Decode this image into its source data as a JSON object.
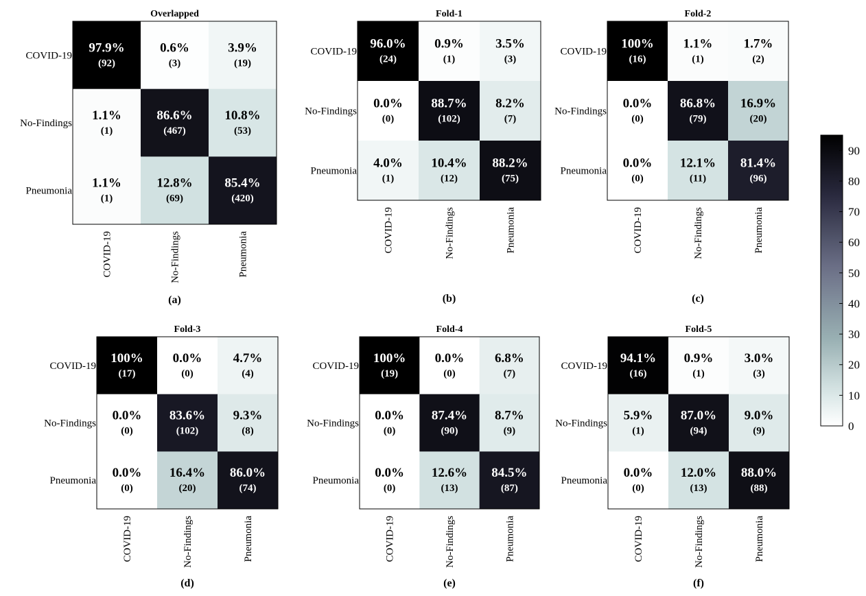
{
  "colorbar": {
    "ticks": [
      0,
      10,
      20,
      30,
      40,
      50,
      60,
      70,
      80,
      90
    ],
    "range": [
      0,
      95
    ],
    "colors": [
      "#ffffff",
      "#d4e3e3",
      "#9ab1b4",
      "#6b6f86",
      "#2a2a3f",
      "#000000"
    ]
  },
  "chart_data": [
    {
      "type": "heatmap",
      "panel": "(a)",
      "title": "Overlapped",
      "row_labels": [
        "COVID-19",
        "No-Findings",
        "Pneumonia"
      ],
      "col_labels": [
        "COVID-19",
        "No-Findings",
        "Pneumonia"
      ],
      "percent": [
        [
          "97.9%",
          "0.6%",
          "3.9%"
        ],
        [
          "1.1%",
          "86.6%",
          "10.8%"
        ],
        [
          "1.1%",
          "12.8%",
          "85.4%"
        ]
      ],
      "counts": [
        [
          "(92)",
          "(3)",
          "(19)"
        ],
        [
          "(1)",
          "(467)",
          "(53)"
        ],
        [
          "(1)",
          "(69)",
          "(420)"
        ]
      ],
      "values": [
        [
          97.9,
          0.6,
          3.9
        ],
        [
          1.1,
          86.6,
          10.8
        ],
        [
          1.1,
          12.8,
          85.4
        ]
      ]
    },
    {
      "type": "heatmap",
      "panel": "(b)",
      "title": "Fold-1",
      "row_labels": [
        "COVID-19",
        "No-Findings",
        "Pneumonia"
      ],
      "col_labels": [
        "COVID-19",
        "No-Findings",
        "Pneumonia"
      ],
      "percent": [
        [
          "96.0%",
          "0.9%",
          "3.5%"
        ],
        [
          "0.0%",
          "88.7%",
          "8.2%"
        ],
        [
          "4.0%",
          "10.4%",
          "88.2%"
        ]
      ],
      "counts": [
        [
          "(24)",
          "(1)",
          "(3)"
        ],
        [
          "(0)",
          "(102)",
          "(7)"
        ],
        [
          "(1)",
          "(12)",
          "(75)"
        ]
      ],
      "values": [
        [
          96.0,
          0.9,
          3.5
        ],
        [
          0.0,
          88.7,
          8.2
        ],
        [
          4.0,
          10.4,
          88.2
        ]
      ]
    },
    {
      "type": "heatmap",
      "panel": "(c)",
      "title": "Fold-2",
      "row_labels": [
        "COVID-19",
        "No-Findings",
        "Pneumonia"
      ],
      "col_labels": [
        "COVID-19",
        "No-Findings",
        "Pneumonia"
      ],
      "percent": [
        [
          "100%",
          "1.1%",
          "1.7%"
        ],
        [
          "0.0%",
          "86.8%",
          "16.9%"
        ],
        [
          "0.0%",
          "12.1%",
          "81.4%"
        ]
      ],
      "counts": [
        [
          "(16)",
          "(1)",
          "(2)"
        ],
        [
          "(0)",
          "(79)",
          "(20)"
        ],
        [
          "(0)",
          "(11)",
          "(96)"
        ]
      ],
      "values": [
        [
          100,
          1.1,
          1.7
        ],
        [
          0.0,
          86.8,
          16.9
        ],
        [
          0.0,
          12.1,
          81.4
        ]
      ]
    },
    {
      "type": "heatmap",
      "panel": "(d)",
      "title": "Fold-3",
      "row_labels": [
        "COVID-19",
        "No-Findings",
        "Pneumonia"
      ],
      "col_labels": [
        "COVID-19",
        "No-Findings",
        "Pneumonia"
      ],
      "percent": [
        [
          "100%",
          "0.0%",
          "4.7%"
        ],
        [
          "0.0%",
          "83.6%",
          "9.3%"
        ],
        [
          "0.0%",
          "16.4%",
          "86.0%"
        ]
      ],
      "counts": [
        [
          "(17)",
          "(0)",
          "(4)"
        ],
        [
          "(0)",
          "(102)",
          "(8)"
        ],
        [
          "(0)",
          "(20)",
          "(74)"
        ]
      ],
      "values": [
        [
          100,
          0.0,
          4.7
        ],
        [
          0.0,
          83.6,
          9.3
        ],
        [
          0.0,
          16.4,
          86.0
        ]
      ]
    },
    {
      "type": "heatmap",
      "panel": "(e)",
      "title": "Fold-4",
      "row_labels": [
        "COVID-19",
        "No-Findings",
        "Pneumonia"
      ],
      "col_labels": [
        "COVID-19",
        "No-Findings",
        "Pneumonia"
      ],
      "percent": [
        [
          "100%",
          "0.0%",
          "6.8%"
        ],
        [
          "0.0%",
          "87.4%",
          "8.7%"
        ],
        [
          "0.0%",
          "12.6%",
          "84.5%"
        ]
      ],
      "counts": [
        [
          "(19)",
          "(0)",
          "(7)"
        ],
        [
          "(0)",
          "(90)",
          "(9)"
        ],
        [
          "(0)",
          "(13)",
          "(87)"
        ]
      ],
      "values": [
        [
          100,
          0.0,
          6.8
        ],
        [
          0.0,
          87.4,
          8.7
        ],
        [
          0.0,
          12.6,
          84.5
        ]
      ]
    },
    {
      "type": "heatmap",
      "panel": "(f)",
      "title": "Fold-5",
      "row_labels": [
        "COVID-19",
        "No-Findings",
        "Pneumonia"
      ],
      "col_labels": [
        "COVID-19",
        "No-Findings",
        "Pneumonia"
      ],
      "percent": [
        [
          "94.1%",
          "0.9%",
          "3.0%"
        ],
        [
          "5.9%",
          "87.0%",
          "9.0%"
        ],
        [
          "0.0%",
          "12.0%",
          "88.0%"
        ]
      ],
      "counts": [
        [
          "(16)",
          "(1)",
          "(3)"
        ],
        [
          "(1)",
          "(94)",
          "(9)"
        ],
        [
          "(0)",
          "(13)",
          "(88)"
        ]
      ],
      "values": [
        [
          94.1,
          0.9,
          3.0
        ],
        [
          5.9,
          87.0,
          9.0
        ],
        [
          0.0,
          12.0,
          88.0
        ]
      ]
    }
  ]
}
